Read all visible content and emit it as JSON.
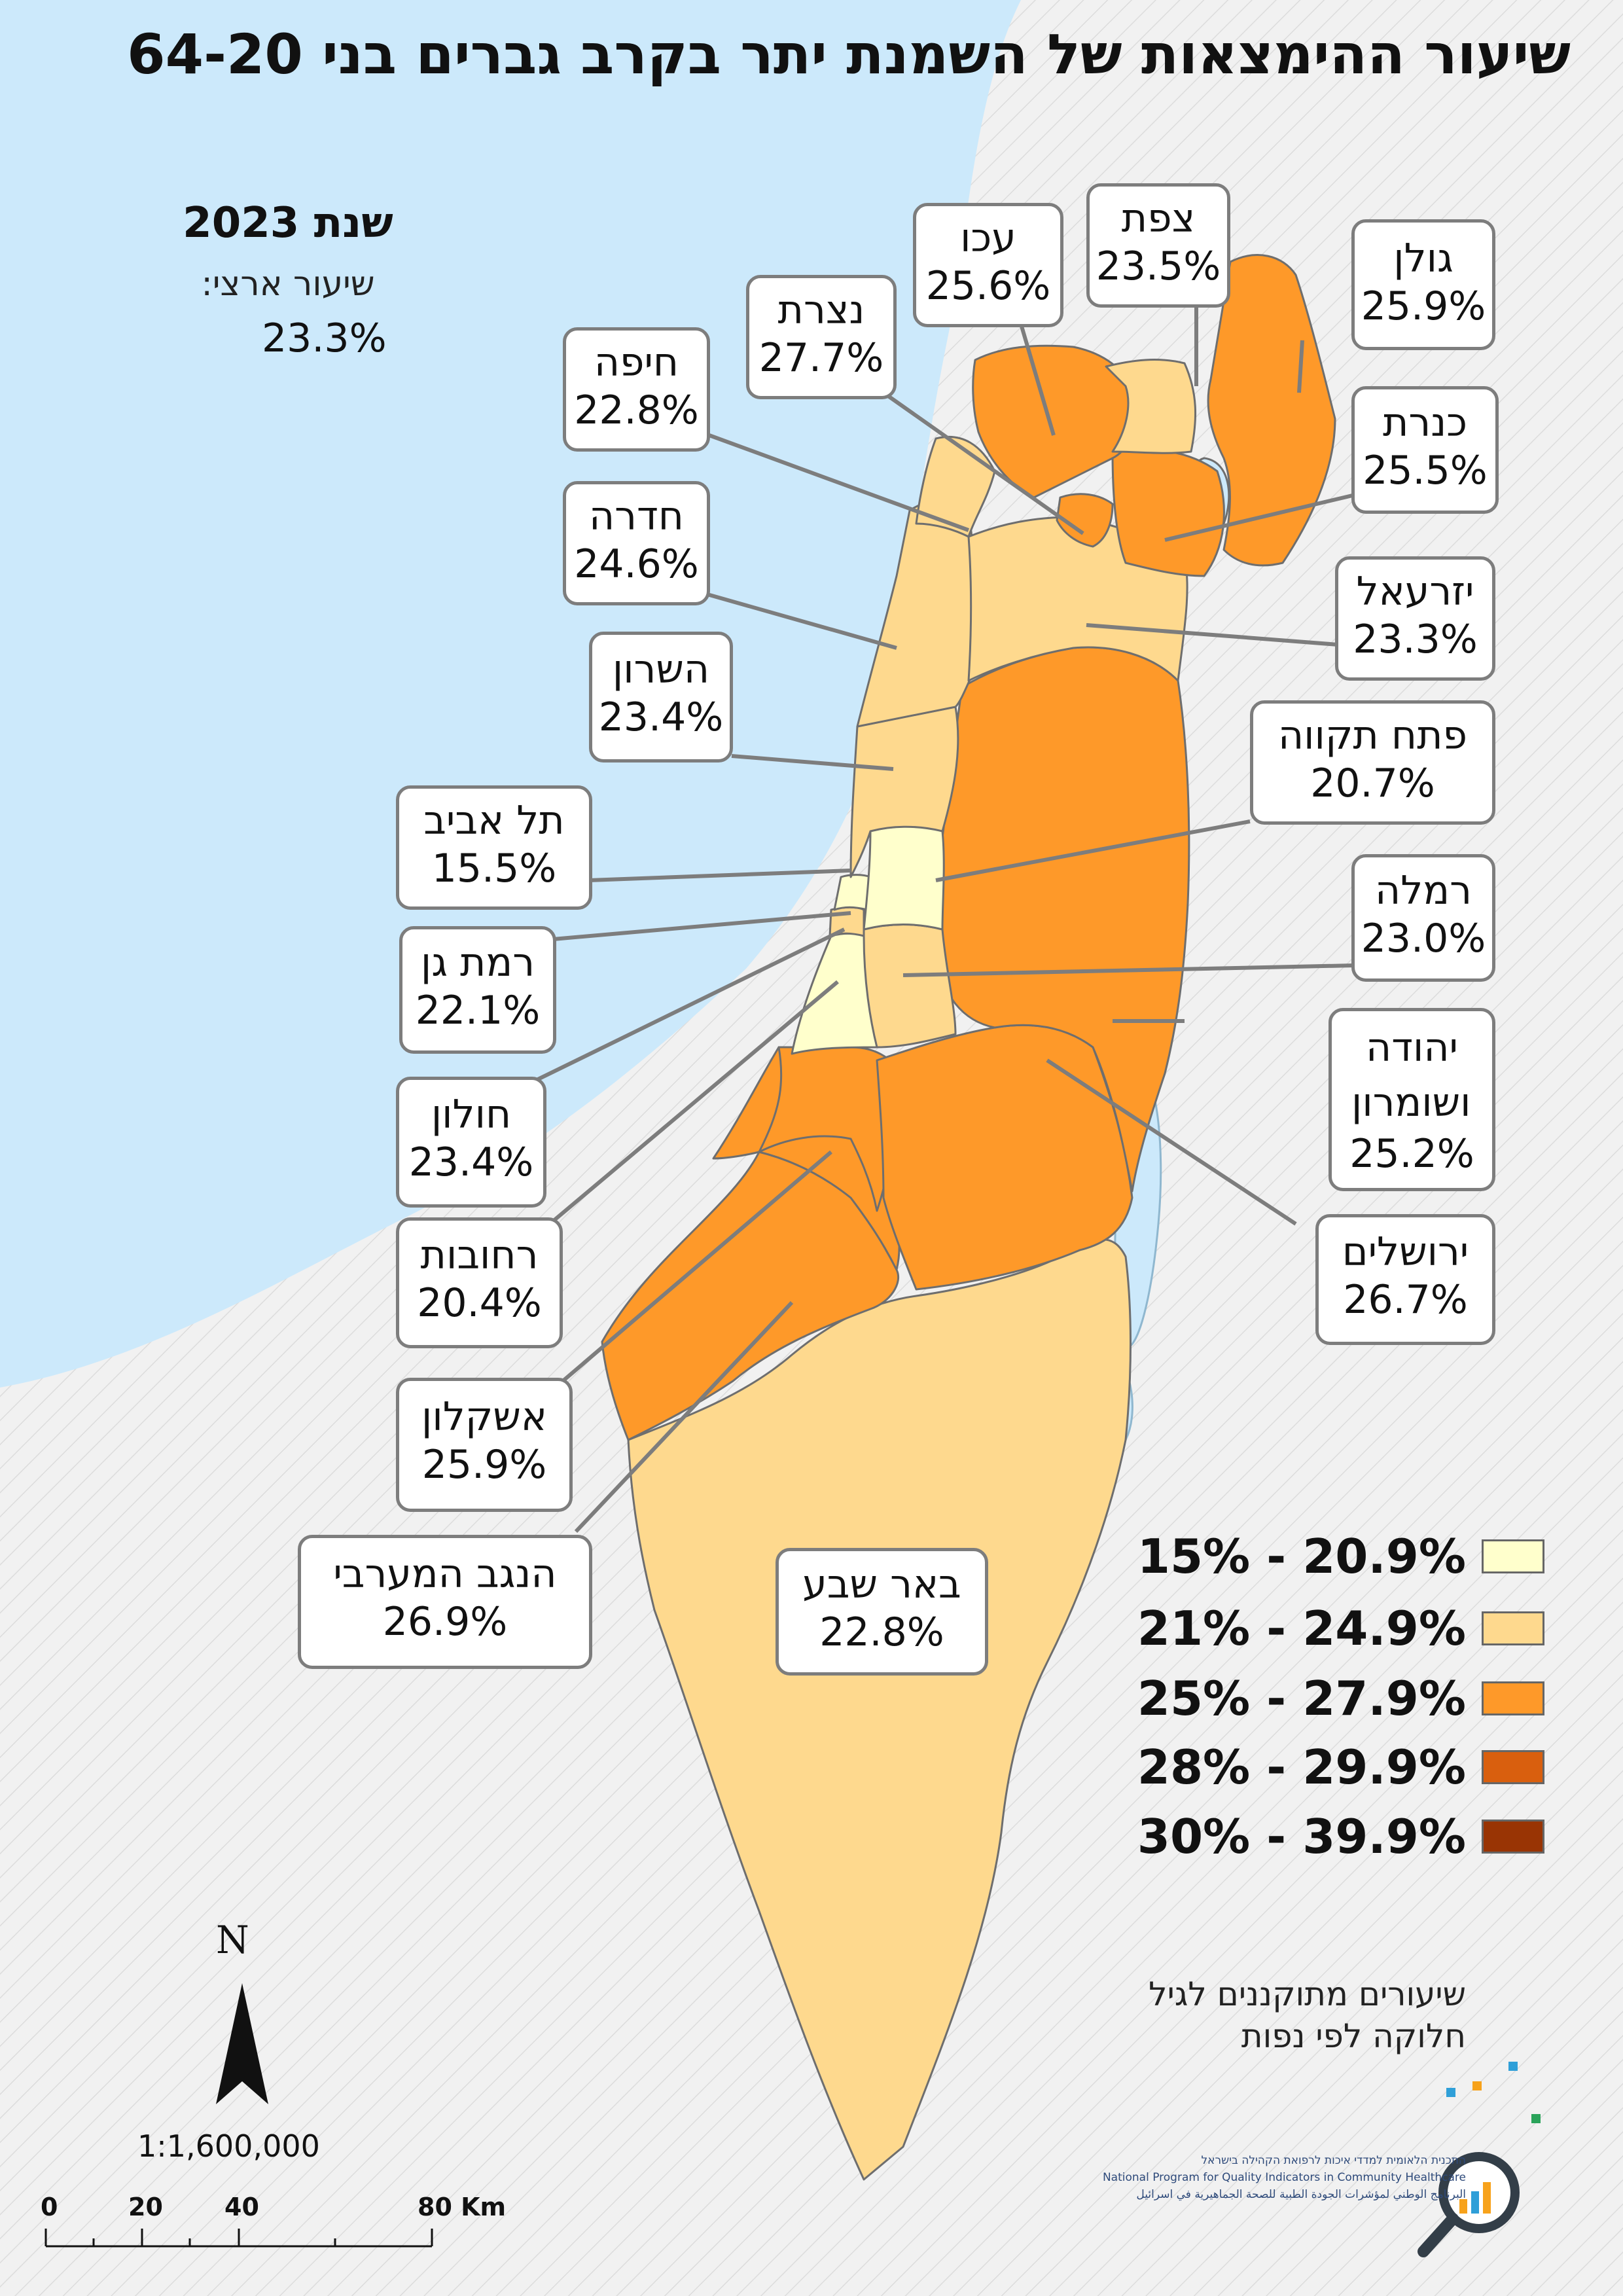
{
  "title": "שיעור ההימצאות של השמנת יתר בקרב גברים בני 64-20",
  "year": "שנת 2023",
  "national_rate_label": "שיעור ארצי:",
  "national_rate_value": "23.3%",
  "districts": [
    {
      "id": "golan",
      "name": "גולן",
      "value": "25.9%",
      "category": "25-27.9"
    },
    {
      "id": "tzfat",
      "name": "צפת",
      "value": "23.5%",
      "category": "21-24.9"
    },
    {
      "id": "akko",
      "name": "עכו",
      "value": "25.6%",
      "category": "25-27.9"
    },
    {
      "id": "nazareth",
      "name": "נצרת",
      "value": "27.7%",
      "category": "25-27.9"
    },
    {
      "id": "haifa",
      "name": "חיפה",
      "value": "22.8%",
      "category": "21-24.9"
    },
    {
      "id": "kinneret",
      "name": "כנרת",
      "value": "25.5%",
      "category": "25-27.9"
    },
    {
      "id": "hadera",
      "name": "חדרה",
      "value": "24.6%",
      "category": "21-24.9"
    },
    {
      "id": "yizreel",
      "name": "יזרעאל",
      "value": "23.3%",
      "category": "21-24.9"
    },
    {
      "id": "sharon",
      "name": "השרון",
      "value": "23.4%",
      "category": "21-24.9"
    },
    {
      "id": "petah_tikva",
      "name": "פתח תקווה",
      "value": "20.7%",
      "category": "15-20.9"
    },
    {
      "id": "tel_aviv",
      "name": "תל אביב",
      "value": "15.5%",
      "category": "15-20.9"
    },
    {
      "id": "ramla",
      "name": "רמלה",
      "value": "23.0%",
      "category": "21-24.9"
    },
    {
      "id": "ramat_gan",
      "name": "רמת גן",
      "value": "22.1%",
      "category": "21-24.9"
    },
    {
      "id": "yehuda_shomron",
      "name": "יהודה ושומרון",
      "value": "25.2%",
      "category": "25-27.9"
    },
    {
      "id": "holon",
      "name": "חולון",
      "value": "23.4%",
      "category": "21-24.9"
    },
    {
      "id": "jerusalem",
      "name": "ירושלים",
      "value": "26.7%",
      "category": "25-27.9"
    },
    {
      "id": "rehovot",
      "name": "רחובות",
      "value": "20.4%",
      "category": "15-20.9"
    },
    {
      "id": "ashkelon",
      "name": "אשקלון",
      "value": "25.9%",
      "category": "25-27.9"
    },
    {
      "id": "western_negev",
      "name": "הנגב המערבי",
      "value": "26.9%",
      "category": "25-27.9"
    },
    {
      "id": "beer_sheva",
      "name": "באר שבע",
      "value": "22.8%",
      "category": "21-24.9"
    }
  ],
  "legend": [
    {
      "label": "15% - 20.9%",
      "color": "#ffffcc"
    },
    {
      "label": "21% - 24.9%",
      "color": "#fed98e"
    },
    {
      "label": "25% - 27.9%",
      "color": "#fe9929"
    },
    {
      "label": "28% - 29.9%",
      "color": "#d95f0e"
    },
    {
      "label": "30% - 39.9%",
      "color": "#993404"
    }
  ],
  "note_line1": "שיעורים מתוקננים לגיל",
  "note_line2": "חלוקה לפי נפות",
  "north_label": "N",
  "scale_text": "1:1,600,000",
  "scalebar_labels": [
    "0",
    "20",
    "40",
    "80 Km"
  ],
  "logo_lines": [
    "התכנית הלאומית למדדי איכות לרפואת הקהילה בישראל",
    "National Program for Quality Indicators in Community Healthcare",
    "البرنامج الوطني لمؤشرات الجودة الطبية للصحة الجماهيرية في اسرائيل"
  ],
  "colors": {
    "sea": "#cce9fb",
    "land_outside": "#f2f2f2",
    "border": "#6e6e6e",
    "leader": "#7d7d7d"
  }
}
